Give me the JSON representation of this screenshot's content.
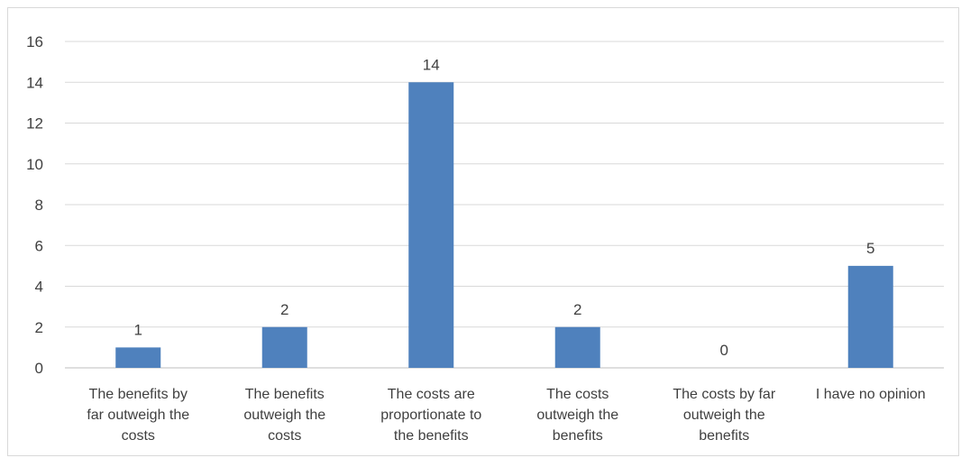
{
  "chart_data": {
    "type": "bar",
    "title": "",
    "xlabel": "",
    "ylabel": "",
    "categories": [
      [
        "The benefits by",
        "far outweigh the",
        "costs"
      ],
      [
        "The benefits",
        "outweigh the",
        "costs"
      ],
      [
        "The costs are",
        "proportionate to",
        "the benefits"
      ],
      [
        "The costs",
        "outweigh the",
        "benefits"
      ],
      [
        "The costs by far",
        "outweigh the",
        "benefits"
      ],
      [
        "I have no opinion"
      ]
    ],
    "values": [
      1,
      2,
      14,
      2,
      0,
      5
    ],
    "ylim": [
      0,
      16
    ],
    "yticks": [
      0,
      2,
      4,
      6,
      8,
      10,
      12,
      14,
      16
    ],
    "grid": true,
    "legend": "none",
    "data_labels": true,
    "colors": {
      "bar": "#4f81bd",
      "grid": "#d9d9d9",
      "axis": "#bfbfbf",
      "text": "#404040"
    }
  }
}
